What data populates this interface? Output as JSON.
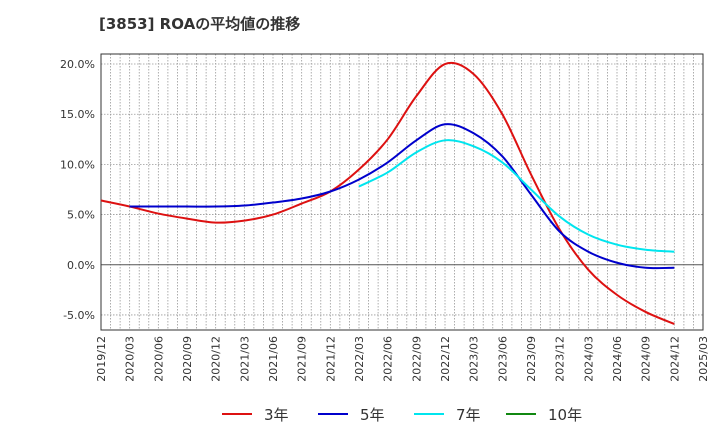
{
  "chart_data": {
    "type": "line",
    "title": "[3853]  ROAの平均値の推移",
    "xlabel": "",
    "ylabel": "",
    "ylim": [
      -6.5,
      21.0
    ],
    "y_ticks": [
      20.0,
      15.0,
      10.0,
      5.0,
      0.0,
      -5.0
    ],
    "y_tick_labels": [
      "20.0%",
      "15.0%",
      "10.0%",
      "5.0%",
      "0.0%",
      "-5.0%"
    ],
    "x_tick_labels": [
      "2019/12",
      "2020/03",
      "2020/06",
      "2020/09",
      "2020/12",
      "2021/03",
      "2021/06",
      "2021/09",
      "2021/12",
      "2022/03",
      "2022/06",
      "2022/09",
      "2022/12",
      "2023/03",
      "2023/06",
      "2023/09",
      "2023/12",
      "2024/03",
      "2024/06",
      "2024/09",
      "2024/12",
      "2025/03"
    ],
    "grid": true,
    "legend_position": "bottom",
    "series": [
      {
        "name": "3年",
        "color": "#dd1111",
        "points": [
          [
            "2019/12",
            6.4
          ],
          [
            "2020/03",
            5.8
          ],
          [
            "2020/06",
            5.1
          ],
          [
            "2020/09",
            4.6
          ],
          [
            "2020/12",
            4.2
          ],
          [
            "2021/03",
            4.4
          ],
          [
            "2021/06",
            5.0
          ],
          [
            "2021/09",
            6.1
          ],
          [
            "2021/12",
            7.3
          ],
          [
            "2022/03",
            9.5
          ],
          [
            "2022/06",
            12.5
          ],
          [
            "2022/09",
            16.8
          ],
          [
            "2022/12",
            20.0
          ],
          [
            "2023/03",
            19.0
          ],
          [
            "2023/06",
            15.0
          ],
          [
            "2023/09",
            9.0
          ],
          [
            "2023/12",
            3.5
          ],
          [
            "2024/03",
            -0.5
          ],
          [
            "2024/06",
            -3.0
          ],
          [
            "2024/09",
            -4.7
          ],
          [
            "2024/12",
            -5.9
          ]
        ]
      },
      {
        "name": "5年",
        "color": "#0000cc",
        "points": [
          [
            "2020/03",
            5.8
          ],
          [
            "2020/06",
            5.8
          ],
          [
            "2020/09",
            5.8
          ],
          [
            "2020/12",
            5.8
          ],
          [
            "2021/03",
            5.9
          ],
          [
            "2021/06",
            6.2
          ],
          [
            "2021/09",
            6.6
          ],
          [
            "2021/12",
            7.3
          ],
          [
            "2022/03",
            8.5
          ],
          [
            "2022/06",
            10.2
          ],
          [
            "2022/09",
            12.4
          ],
          [
            "2022/12",
            14.0
          ],
          [
            "2023/03",
            13.1
          ],
          [
            "2023/06",
            10.8
          ],
          [
            "2023/09",
            7.0
          ],
          [
            "2023/12",
            3.3
          ],
          [
            "2024/03",
            1.3
          ],
          [
            "2024/06",
            0.2
          ],
          [
            "2024/09",
            -0.3
          ],
          [
            "2024/12",
            -0.3
          ]
        ]
      },
      {
        "name": "7年",
        "color": "#00e5ee",
        "points": [
          [
            "2022/03",
            7.8
          ],
          [
            "2022/06",
            9.2
          ],
          [
            "2022/09",
            11.2
          ],
          [
            "2022/12",
            12.4
          ],
          [
            "2023/03",
            11.8
          ],
          [
            "2023/06",
            10.2
          ],
          [
            "2023/09",
            7.5
          ],
          [
            "2023/12",
            4.8
          ],
          [
            "2024/03",
            3.0
          ],
          [
            "2024/06",
            2.0
          ],
          [
            "2024/09",
            1.5
          ],
          [
            "2024/12",
            1.3
          ]
        ]
      },
      {
        "name": "10年",
        "color": "#118811",
        "points": []
      }
    ]
  }
}
